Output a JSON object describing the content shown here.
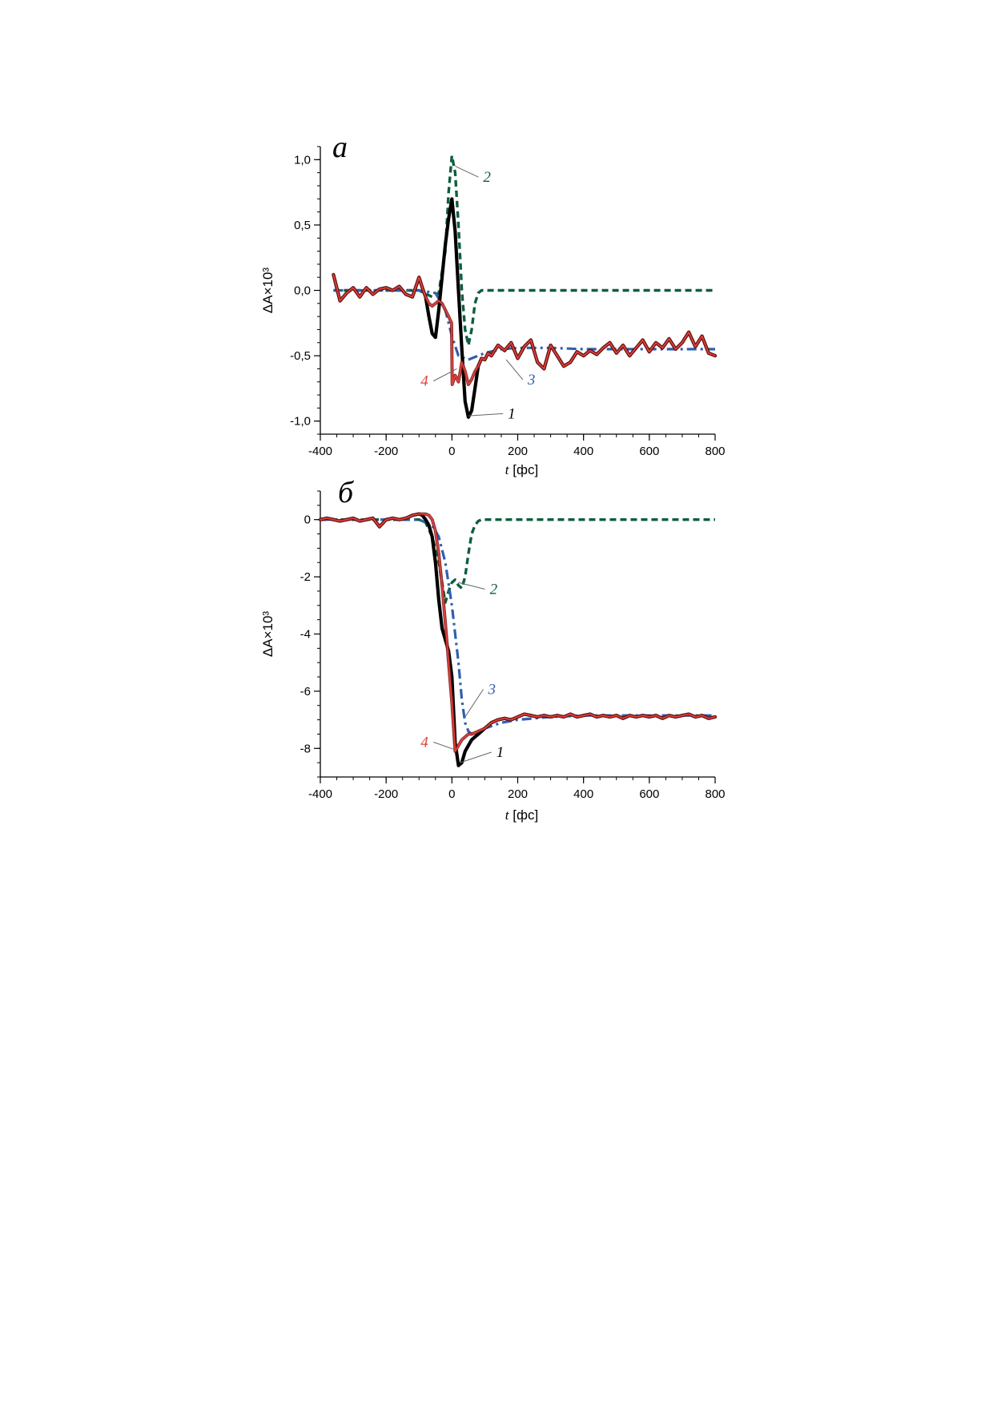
{
  "colors": {
    "curve1": "#000000",
    "curve2": "#0e5e3c",
    "curve3": "#2f5fb0",
    "curve4_fill": "#e0403a",
    "curve4_edge": "#7a1414",
    "leader": "#666666"
  },
  "chart_data": [
    {
      "type": "line",
      "panel_label": "а",
      "xlabel_var": "t",
      "xlabel_unit": " [фс]",
      "ylabel": "ΔA×10³",
      "xlim": [
        -400,
        800
      ],
      "ylim": [
        -1.1,
        1.1
      ],
      "x_ticks": [
        -400,
        -200,
        0,
        200,
        400,
        600,
        800
      ],
      "x_tick_labels": [
        "-400",
        "-200",
        "0",
        "200",
        "400",
        "600",
        "800"
      ],
      "y_ticks": [
        -1.0,
        -0.5,
        0.0,
        0.5,
        1.0
      ],
      "y_tick_labels": [
        "-1,0",
        "-0,5",
        "0,0",
        "0,5",
        "1,0"
      ],
      "x_minor_step": 50,
      "y_minor_step": 0.1,
      "series": [
        {
          "name": "1",
          "style": "solid-thick",
          "x": [
            -360,
            -340,
            -320,
            -300,
            -280,
            -260,
            -240,
            -220,
            -200,
            -180,
            -160,
            -140,
            -120,
            -100,
            -90,
            -80,
            -70,
            -60,
            -50,
            -40,
            -30,
            -20,
            -10,
            0,
            10,
            20,
            30,
            40,
            50,
            60,
            70,
            80,
            90,
            100,
            110,
            120,
            140,
            160,
            180,
            200,
            220,
            240,
            260,
            280,
            300,
            320,
            340,
            360,
            380,
            400,
            420,
            440,
            460,
            480,
            500,
            520,
            540,
            560,
            580,
            600,
            620,
            640,
            660,
            680,
            700,
            720,
            740,
            760,
            780,
            800
          ],
          "y": [
            0.12,
            -0.08,
            -0.02,
            0.02,
            -0.05,
            0.02,
            -0.03,
            0.01,
            0.02,
            0.0,
            0.03,
            -0.03,
            -0.05,
            0.1,
            0.02,
            -0.05,
            -0.2,
            -0.33,
            -0.36,
            -0.15,
            0.1,
            0.35,
            0.55,
            0.7,
            0.45,
            0.0,
            -0.45,
            -0.85,
            -0.97,
            -0.92,
            -0.75,
            -0.58,
            -0.52,
            -0.53,
            -0.48,
            -0.5,
            -0.42,
            -0.46,
            -0.4,
            -0.52,
            -0.43,
            -0.38,
            -0.55,
            -0.6,
            -0.42,
            -0.5,
            -0.58,
            -0.55,
            -0.47,
            -0.5,
            -0.46,
            -0.49,
            -0.44,
            -0.4,
            -0.48,
            -0.42,
            -0.5,
            -0.44,
            -0.38,
            -0.47,
            -0.4,
            -0.44,
            -0.37,
            -0.45,
            -0.4,
            -0.32,
            -0.43,
            -0.35,
            -0.48,
            -0.5
          ]
        },
        {
          "name": "2",
          "style": "dash",
          "x": [
            -360,
            -200,
            -100,
            -60,
            -40,
            -20,
            -10,
            0,
            10,
            20,
            30,
            40,
            50,
            60,
            70,
            80,
            90,
            100,
            150,
            200,
            400,
            600,
            800
          ],
          "y": [
            0.0,
            0.0,
            0.0,
            -0.05,
            -0.02,
            0.3,
            0.75,
            1.03,
            0.9,
            0.5,
            0.0,
            -0.3,
            -0.42,
            -0.3,
            -0.1,
            -0.02,
            0.0,
            0.0,
            0.0,
            0.0,
            0.0,
            0.0,
            0.0
          ]
        },
        {
          "name": "3",
          "style": "dashdot",
          "x": [
            -360,
            -200,
            -100,
            -50,
            -20,
            0,
            20,
            50,
            80,
            100,
            150,
            200,
            300,
            400,
            500,
            600,
            700,
            800
          ],
          "y": [
            0.0,
            0.0,
            0.0,
            -0.02,
            -0.15,
            -0.35,
            -0.5,
            -0.53,
            -0.5,
            -0.48,
            -0.45,
            -0.44,
            -0.44,
            -0.45,
            -0.45,
            -0.45,
            -0.45,
            -0.45
          ]
        },
        {
          "name": "4",
          "style": "solid-thin",
          "x": [
            -360,
            -340,
            -320,
            -300,
            -280,
            -260,
            -240,
            -220,
            -200,
            -180,
            -160,
            -140,
            -120,
            -100,
            -90,
            -80,
            -70,
            -60,
            -50,
            -40,
            -30,
            -20,
            -10,
            -1,
            1,
            10,
            20,
            30,
            40,
            50,
            60,
            70,
            80,
            90,
            100,
            110,
            120,
            140,
            160,
            180,
            200,
            220,
            240,
            260,
            280,
            300,
            320,
            340,
            360,
            380,
            400,
            420,
            440,
            460,
            480,
            500,
            520,
            540,
            560,
            580,
            600,
            620,
            640,
            660,
            680,
            700,
            720,
            740,
            760,
            780,
            800
          ],
          "y": [
            0.12,
            -0.08,
            -0.02,
            0.02,
            -0.05,
            0.02,
            -0.03,
            0.01,
            0.02,
            0.0,
            0.03,
            -0.03,
            -0.05,
            0.1,
            0.02,
            -0.05,
            -0.1,
            -0.12,
            -0.1,
            -0.08,
            -0.1,
            -0.15,
            -0.2,
            -0.25,
            -0.72,
            -0.65,
            -0.7,
            -0.55,
            -0.62,
            -0.72,
            -0.68,
            -0.62,
            -0.58,
            -0.52,
            -0.53,
            -0.48,
            -0.5,
            -0.42,
            -0.46,
            -0.4,
            -0.52,
            -0.43,
            -0.38,
            -0.55,
            -0.6,
            -0.42,
            -0.5,
            -0.58,
            -0.55,
            -0.47,
            -0.5,
            -0.46,
            -0.49,
            -0.44,
            -0.4,
            -0.48,
            -0.42,
            -0.5,
            -0.44,
            -0.38,
            -0.47,
            -0.4,
            -0.44,
            -0.37,
            -0.45,
            -0.4,
            -0.32,
            -0.43,
            -0.35,
            -0.48,
            -0.5
          ]
        }
      ],
      "callouts": [
        {
          "series": "1",
          "text": "1",
          "point": [
            50,
            -0.96
          ],
          "text_at": [
            170,
            -0.98
          ]
        },
        {
          "series": "2",
          "text": "2",
          "point": [
            10,
            0.95
          ],
          "text_at": [
            95,
            0.83
          ]
        },
        {
          "series": "3",
          "text": "3",
          "point": [
            165,
            -0.53
          ],
          "text_at": [
            230,
            -0.72
          ]
        },
        {
          "series": "4",
          "text": "4",
          "point": [
            15,
            -0.6
          ],
          "text_at": [
            -95,
            -0.73
          ]
        }
      ]
    },
    {
      "type": "line",
      "panel_label": "б",
      "xlabel_var": "t",
      "xlabel_unit": " [фс]",
      "ylabel": "ΔA×10³",
      "xlim": [
        -400,
        800
      ],
      "ylim": [
        -9,
        1
      ],
      "x_ticks": [
        -400,
        -200,
        0,
        200,
        400,
        600,
        800
      ],
      "x_tick_labels": [
        "-400",
        "-200",
        "0",
        "200",
        "400",
        "600",
        "800"
      ],
      "y_ticks": [
        -8,
        -6,
        -4,
        -2,
        0
      ],
      "y_tick_labels": [
        "-8",
        "-6",
        "-4",
        "-2",
        "0"
      ],
      "x_minor_step": 50,
      "y_minor_step": 0.5,
      "series": [
        {
          "name": "1",
          "style": "solid-thick",
          "x": [
            -400,
            -380,
            -360,
            -340,
            -320,
            -300,
            -280,
            -260,
            -240,
            -220,
            -200,
            -180,
            -160,
            -140,
            -120,
            -100,
            -90,
            -80,
            -70,
            -60,
            -50,
            -40,
            -30,
            -20,
            -10,
            0,
            10,
            20,
            30,
            40,
            50,
            60,
            70,
            80,
            90,
            100,
            120,
            140,
            160,
            180,
            200,
            220,
            240,
            260,
            280,
            300,
            320,
            340,
            360,
            380,
            400,
            420,
            440,
            460,
            480,
            500,
            520,
            540,
            560,
            580,
            600,
            620,
            640,
            660,
            680,
            700,
            720,
            740,
            760,
            780,
            800
          ],
          "y": [
            0.0,
            0.05,
            0.0,
            -0.05,
            0.0,
            0.05,
            -0.05,
            0.0,
            0.05,
            -0.25,
            0.0,
            0.05,
            0.0,
            0.05,
            0.15,
            0.2,
            0.15,
            0.0,
            -0.2,
            -0.6,
            -1.5,
            -2.8,
            -3.8,
            -4.2,
            -4.6,
            -5.5,
            -7.8,
            -8.6,
            -8.5,
            -8.1,
            -7.9,
            -7.7,
            -7.6,
            -7.5,
            -7.4,
            -7.3,
            -7.1,
            -7.0,
            -6.95,
            -7.0,
            -6.9,
            -6.8,
            -6.85,
            -6.9,
            -6.85,
            -6.9,
            -6.85,
            -6.9,
            -6.8,
            -6.9,
            -6.85,
            -6.8,
            -6.9,
            -6.85,
            -6.9,
            -6.85,
            -6.95,
            -6.85,
            -6.9,
            -6.85,
            -6.9,
            -6.85,
            -6.95,
            -6.85,
            -6.9,
            -6.85,
            -6.8,
            -6.9,
            -6.85,
            -6.95,
            -6.9
          ]
        },
        {
          "name": "2",
          "style": "dash",
          "x": [
            -400,
            -200,
            -100,
            -80,
            -60,
            -40,
            -30,
            -20,
            -10,
            0,
            10,
            20,
            30,
            40,
            50,
            60,
            70,
            80,
            90,
            100,
            150,
            200,
            400,
            600,
            800
          ],
          "y": [
            0.0,
            0.0,
            0.0,
            -0.1,
            -0.6,
            -1.5,
            -2.2,
            -2.9,
            -2.5,
            -2.2,
            -2.1,
            -2.3,
            -2.4,
            -2.0,
            -1.2,
            -0.5,
            -0.2,
            -0.05,
            0.0,
            0.0,
            0.0,
            0.0,
            0.0,
            0.0,
            0.0
          ]
        },
        {
          "name": "3",
          "style": "dashdot",
          "x": [
            -400,
            -200,
            -100,
            -60,
            -40,
            -20,
            0,
            20,
            30,
            40,
            50,
            60,
            80,
            100,
            150,
            200,
            300,
            400,
            500,
            600,
            700,
            800
          ],
          "y": [
            0.0,
            0.0,
            0.0,
            -0.2,
            -0.6,
            -1.5,
            -3.0,
            -5.0,
            -6.3,
            -7.1,
            -7.4,
            -7.5,
            -7.4,
            -7.3,
            -7.1,
            -7.0,
            -6.9,
            -6.85,
            -6.85,
            -6.85,
            -6.85,
            -6.85
          ]
        },
        {
          "name": "4",
          "style": "solid-thin",
          "x": [
            -400,
            -380,
            -360,
            -340,
            -320,
            -300,
            -280,
            -260,
            -240,
            -220,
            -200,
            -180,
            -160,
            -140,
            -120,
            -100,
            -90,
            -80,
            -70,
            -60,
            -50,
            -40,
            -30,
            -20,
            -10,
            0,
            10,
            20,
            30,
            40,
            50,
            60,
            70,
            80,
            90,
            100,
            120,
            140,
            160,
            180,
            200,
            220,
            240,
            260,
            280,
            300,
            320,
            340,
            360,
            380,
            400,
            420,
            440,
            460,
            480,
            500,
            520,
            540,
            560,
            580,
            600,
            620,
            640,
            660,
            680,
            700,
            720,
            740,
            760,
            780,
            800
          ],
          "y": [
            0.0,
            0.05,
            0.0,
            -0.05,
            0.0,
            0.05,
            -0.05,
            0.0,
            0.05,
            -0.25,
            0.0,
            0.05,
            0.0,
            0.05,
            0.15,
            0.2,
            0.2,
            0.2,
            0.15,
            0.0,
            -0.4,
            -1.2,
            -2.3,
            -3.6,
            -5.0,
            -6.4,
            -8.1,
            -7.9,
            -7.7,
            -7.6,
            -7.5,
            -7.5,
            -7.45,
            -7.4,
            -7.35,
            -7.3,
            -7.1,
            -7.0,
            -6.95,
            -7.0,
            -6.9,
            -6.8,
            -6.85,
            -6.9,
            -6.85,
            -6.9,
            -6.85,
            -6.9,
            -6.8,
            -6.9,
            -6.85,
            -6.8,
            -6.9,
            -6.85,
            -6.9,
            -6.85,
            -6.95,
            -6.85,
            -6.9,
            -6.85,
            -6.9,
            -6.85,
            -6.95,
            -6.85,
            -6.9,
            -6.85,
            -6.8,
            -6.9,
            -6.85,
            -6.95,
            -6.9
          ]
        }
      ],
      "callouts": [
        {
          "series": "1",
          "text": "1",
          "point": [
            25,
            -8.5
          ],
          "text_at": [
            135,
            -8.3
          ]
        },
        {
          "series": "2",
          "text": "2",
          "point": [
            20,
            -2.2
          ],
          "text_at": [
            115,
            -2.6
          ]
        },
        {
          "series": "3",
          "text": "3",
          "point": [
            40,
            -6.9
          ],
          "text_at": [
            110,
            -6.1
          ]
        },
        {
          "series": "4",
          "text": "4",
          "point": [
            10,
            -8.05
          ],
          "text_at": [
            -95,
            -7.95
          ]
        }
      ]
    }
  ]
}
